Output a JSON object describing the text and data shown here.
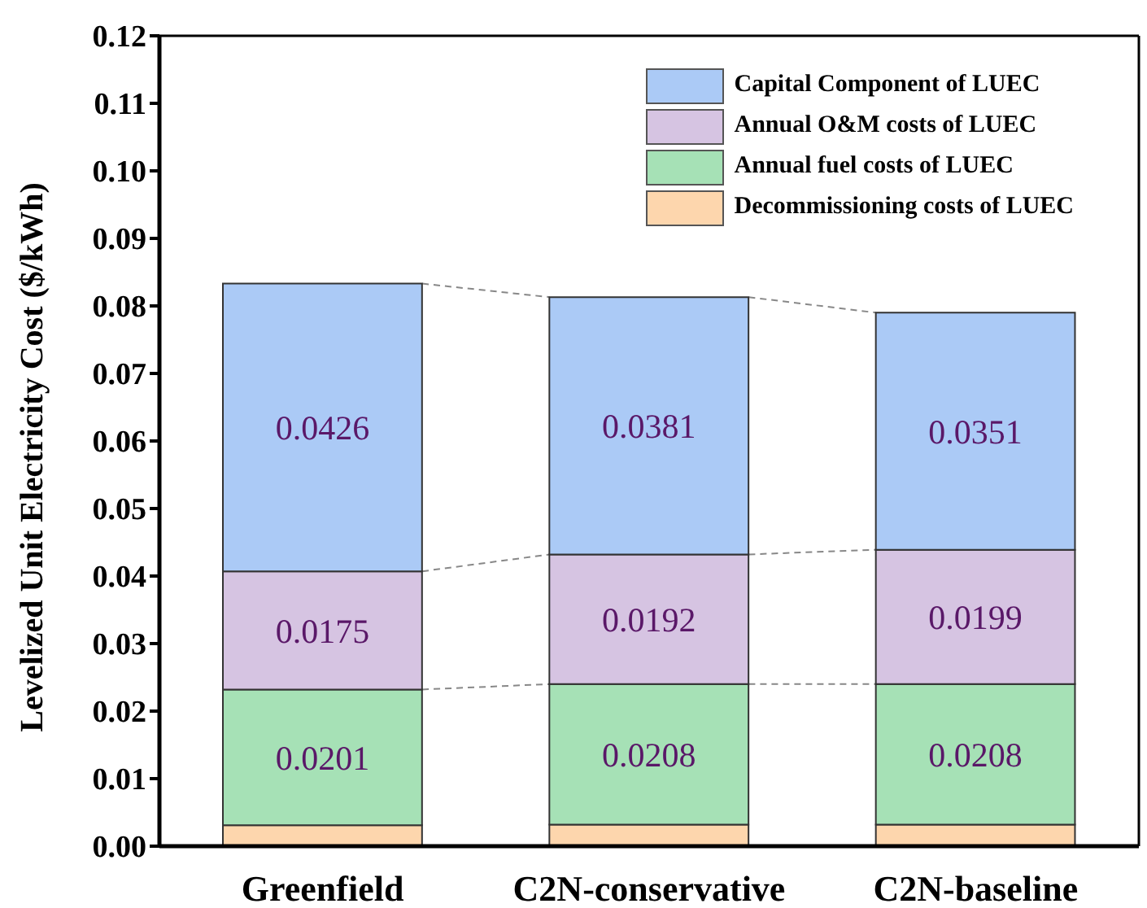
{
  "chart_data": {
    "type": "bar",
    "stacked": true,
    "ylabel": "Levelized Unit Electricity Cost ($/kWh)",
    "categories": [
      "Greenfield",
      "C2N-conservative",
      "C2N-baseline"
    ],
    "series": [
      {
        "name": "Decommissioning costs of LUEC",
        "color": "#fdd6ad",
        "values": [
          0.0031,
          0.0032,
          0.0032
        ]
      },
      {
        "name": "Annual fuel costs of LUEC",
        "color": "#a6e1b6",
        "values": [
          0.0201,
          0.0208,
          0.0208
        ],
        "value_labels": [
          "0.0201",
          "0.0208",
          "0.0208"
        ]
      },
      {
        "name": "Annual O&M costs of LUEC",
        "color": "#d6c4e2",
        "values": [
          0.0175,
          0.0192,
          0.0199
        ],
        "value_labels": [
          "0.0175",
          "0.0192",
          "0.0199"
        ]
      },
      {
        "name": "Capital Component of LUEC",
        "color": "#abcaf6",
        "values": [
          0.0426,
          0.0381,
          0.0351
        ],
        "value_labels": [
          "0.0426",
          "0.0381",
          "0.0351"
        ]
      }
    ],
    "ylim": [
      0,
      0.12
    ],
    "yticks": [
      {
        "value": 0,
        "label": "0.00"
      },
      {
        "value": 0.01,
        "label": "0.01"
      },
      {
        "value": 0.02,
        "label": "0.02"
      },
      {
        "value": 0.03,
        "label": "0.03"
      },
      {
        "value": 0.04,
        "label": "0.04"
      },
      {
        "value": 0.05,
        "label": "0.05"
      },
      {
        "value": 0.06,
        "label": "0.06"
      },
      {
        "value": 0.07,
        "label": "0.07"
      },
      {
        "value": 0.08,
        "label": "0.08"
      },
      {
        "value": 0.09,
        "label": "0.09"
      },
      {
        "value": 0.1,
        "label": "0.10"
      },
      {
        "value": 0.11,
        "label": "0.11"
      },
      {
        "value": 0.12,
        "label": "0.12"
      }
    ],
    "legend": "top right"
  }
}
